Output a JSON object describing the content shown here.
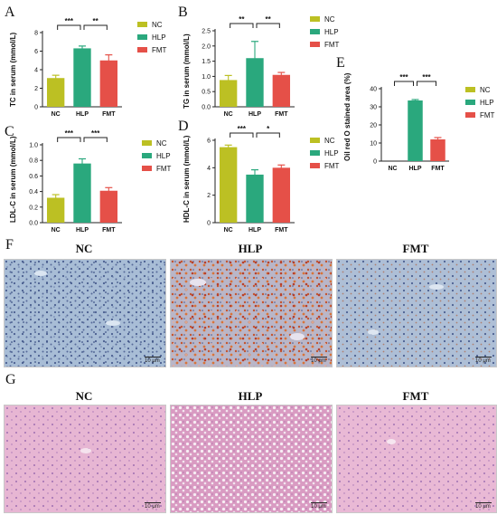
{
  "colors": {
    "NC": "#bcc023",
    "HLP": "#2aa87d",
    "FMT": "#e55048",
    "axis": "#222222",
    "dot": "#d04a3a"
  },
  "panel_labels": {
    "A": "A",
    "B": "B",
    "C": "C",
    "D": "D",
    "E": "E",
    "F": "F",
    "G": "G"
  },
  "legend": [
    "NC",
    "HLP",
    "FMT"
  ],
  "chart_data": [
    {
      "id": "A",
      "type": "bar",
      "categories": [
        "NC",
        "HLP",
        "FMT"
      ],
      "values": [
        3.1,
        6.3,
        5.0
      ],
      "errors": [
        0.3,
        0.25,
        0.6
      ],
      "ylabel": "TC in serum (mmol/L)",
      "ylim": [
        0,
        8
      ],
      "yticks": [
        0,
        2,
        4,
        6,
        8
      ],
      "sig": [
        {
          "from": 0,
          "to": 1,
          "label": "***"
        },
        {
          "from": 1,
          "to": 2,
          "label": "**"
        }
      ]
    },
    {
      "id": "B",
      "type": "bar",
      "categories": [
        "NC",
        "HLP",
        "FMT"
      ],
      "values": [
        0.88,
        1.6,
        1.05
      ],
      "errors": [
        0.15,
        0.55,
        0.08
      ],
      "ylabel": "TG in serum (mmol/L)",
      "ylim": [
        0,
        2.5
      ],
      "yticks": [
        0.0,
        0.5,
        1.0,
        1.5,
        2.0,
        2.5
      ],
      "sig": [
        {
          "from": 0,
          "to": 1,
          "label": "**"
        },
        {
          "from": 1,
          "to": 2,
          "label": "**"
        }
      ]
    },
    {
      "id": "C",
      "type": "bar",
      "categories": [
        "NC",
        "HLP",
        "FMT"
      ],
      "values": [
        0.32,
        0.76,
        0.41
      ],
      "errors": [
        0.04,
        0.06,
        0.04
      ],
      "ylabel": "LDL-C in serum (mmol/L)",
      "ylim": [
        0,
        1.0
      ],
      "yticks": [
        0.0,
        0.2,
        0.4,
        0.6,
        0.8,
        1.0
      ],
      "sig": [
        {
          "from": 0,
          "to": 1,
          "label": "***"
        },
        {
          "from": 1,
          "to": 2,
          "label": "***"
        }
      ]
    },
    {
      "id": "D",
      "type": "bar",
      "categories": [
        "NC",
        "HLP",
        "FMT"
      ],
      "values": [
        5.5,
        3.5,
        4.0
      ],
      "errors": [
        0.15,
        0.35,
        0.2
      ],
      "ylabel": "HDL-C in serum (mmol/L)",
      "ylim": [
        0,
        6
      ],
      "yticks": [
        0,
        2,
        4,
        6
      ],
      "sig": [
        {
          "from": 0,
          "to": 1,
          "label": "***"
        },
        {
          "from": 1,
          "to": 2,
          "label": "*"
        }
      ]
    },
    {
      "id": "E",
      "type": "bar",
      "categories": [
        "NC",
        "HLP",
        "FMT"
      ],
      "values": [
        0,
        33.5,
        12
      ],
      "errors": [
        0,
        0.5,
        1
      ],
      "ylabel": "Oil red O stained area (%)",
      "ylim": [
        0,
        40
      ],
      "yticks": [
        0,
        10,
        20,
        30,
        40
      ],
      "sig": [
        {
          "from": 0,
          "to": 1,
          "label": "***"
        },
        {
          "from": 1,
          "to": 2,
          "label": "***"
        }
      ]
    }
  ],
  "micrographs": {
    "F": {
      "titles": [
        "NC",
        "HLP",
        "FMT"
      ],
      "scale": "10 μm"
    },
    "G": {
      "titles": [
        "NC",
        "HLP",
        "FMT"
      ],
      "scale": "10 μm"
    }
  }
}
